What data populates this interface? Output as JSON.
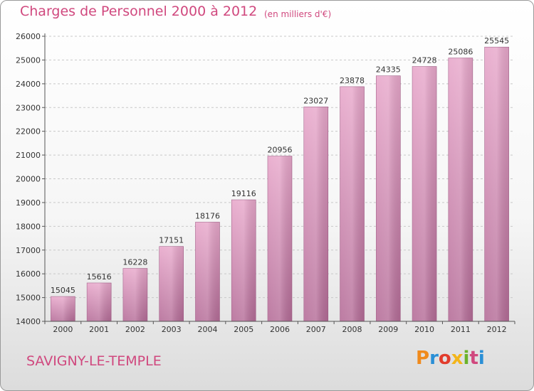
{
  "header": {
    "title": "Charges de Personnel 2000 à 2012",
    "subtitle": "(en milliers d'€)"
  },
  "footer": {
    "place": "SAVIGNY-LE-TEMPLE",
    "logo_text": "Proxiti",
    "logo_colors": [
      "#f08a1c",
      "#2a8fd6",
      "#e23c2c",
      "#f3b51b",
      "#6bb22a",
      "#d0487e",
      "#2a8fd6"
    ]
  },
  "colors": {
    "accent": "#d0487e",
    "bar_top": "#e8a8cb",
    "bar_bottom": "#b56d98",
    "gridline": "#c8c8c8",
    "axis": "#555555"
  },
  "chart_data": {
    "type": "bar",
    "title": "Charges de Personnel 2000 à 2012",
    "subtitle": "(en milliers d'€)",
    "categories": [
      "2000",
      "2001",
      "2002",
      "2003",
      "2004",
      "2005",
      "2006",
      "2007",
      "2008",
      "2009",
      "2010",
      "2011",
      "2012"
    ],
    "values": [
      15045,
      15616,
      16228,
      17151,
      18176,
      19116,
      20956,
      23027,
      23878,
      24335,
      24728,
      25086,
      25545
    ],
    "data_labels": [
      "15045",
      "15616",
      "16228",
      "17151",
      "18176",
      "19116",
      "20956",
      "23027",
      "23878",
      "24335",
      "24728",
      "25086",
      "25545"
    ],
    "ylim": [
      14000,
      26000
    ],
    "yticks": [
      14000,
      15000,
      16000,
      17000,
      18000,
      19000,
      20000,
      21000,
      22000,
      23000,
      24000,
      25000,
      26000
    ],
    "ytick_labels": [
      "14000",
      "15000",
      "16000",
      "17000",
      "18000",
      "19000",
      "20000",
      "21000",
      "22000",
      "23000",
      "24000",
      "25000",
      "26000"
    ],
    "grid": true,
    "xlabel": "",
    "ylabel": ""
  }
}
